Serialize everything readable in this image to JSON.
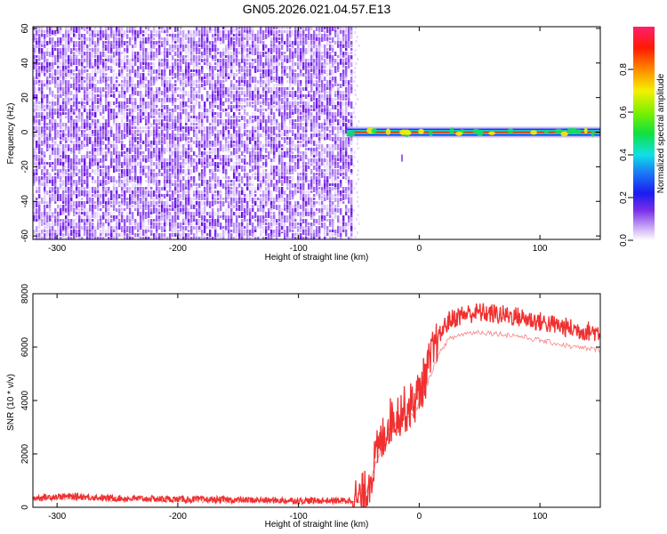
{
  "figure_title": "GN05.2026.021.04.57.E13",
  "chart_data": [
    {
      "type": "heatmap",
      "title": "GN05.2026.021.04.57.E13",
      "xlabel": "Height of straight line (km)",
      "ylabel": "Frequency (Hz)",
      "xlim": [
        -320,
        150
      ],
      "ylim": [
        -62,
        61
      ],
      "x_ticks": [
        -300,
        -200,
        -100,
        0,
        100
      ],
      "y_ticks": [
        -60,
        -40,
        -20,
        0,
        20,
        40,
        60
      ],
      "noise_region_x": [
        -320,
        -55
      ],
      "signal_line": {
        "x_start": -60,
        "x_end": 150,
        "frequency": 0
      },
      "colorbar": {
        "label": "Normalized spectral amplitude",
        "range": [
          0,
          1
        ],
        "ticks": [
          0.0,
          0.2,
          0.4,
          0.6,
          0.8
        ],
        "tick_labels": [
          "0.0",
          "0.2",
          "0.4",
          "0.6",
          "0.8"
        ]
      }
    },
    {
      "type": "line",
      "xlabel": "Height of straight line (km)",
      "ylabel": "SNR (10 * v/v)",
      "xlim": [
        -320,
        150
      ],
      "ylim": [
        0,
        8000
      ],
      "x_ticks": [
        -300,
        -200,
        -100,
        0,
        100
      ],
      "y_ticks": [
        0,
        2000,
        4000,
        6000,
        8000
      ],
      "color": "#f03030",
      "series": [
        {
          "name": "SNR",
          "x": [
            -320,
            -300,
            -280,
            -260,
            -240,
            -220,
            -200,
            -180,
            -160,
            -140,
            -120,
            -100,
            -80,
            -60,
            -50,
            -45,
            -40,
            -35,
            -30,
            -25,
            -20,
            -15,
            -10,
            -5,
            0,
            5,
            10,
            15,
            20,
            25,
            30,
            35,
            40,
            50,
            60,
            70,
            80,
            90,
            100,
            110,
            120,
            130,
            140,
            150
          ],
          "y": [
            350,
            400,
            400,
            350,
            330,
            320,
            300,
            290,
            280,
            270,
            260,
            250,
            250,
            250,
            280,
            500,
            1200,
            2000,
            2600,
            3200,
            3400,
            3600,
            3700,
            3900,
            4300,
            4900,
            5600,
            6200,
            6700,
            7000,
            7100,
            7200,
            7250,
            7300,
            7250,
            7200,
            7150,
            7050,
            6950,
            6850,
            6750,
            6650,
            6600,
            6550
          ]
        }
      ]
    }
  ]
}
